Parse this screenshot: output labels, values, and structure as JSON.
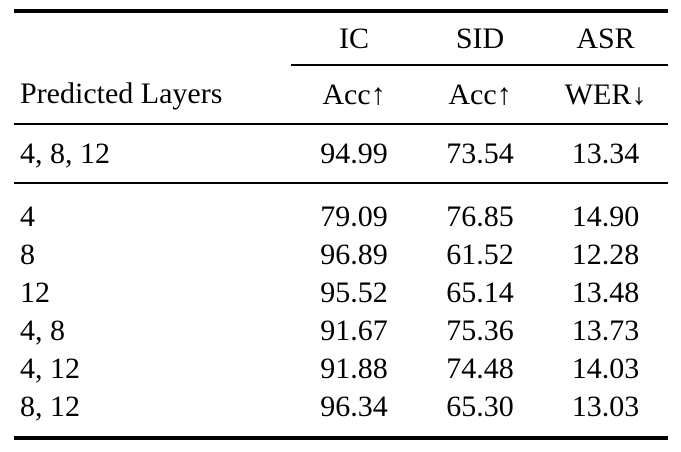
{
  "table": {
    "column_groups": [
      "IC",
      "SID",
      "ASR"
    ],
    "header": {
      "row_label": "Predicted Layers",
      "metrics": [
        {
          "label": "Acc",
          "arrow": "↑"
        },
        {
          "label": "Acc",
          "arrow": "↑"
        },
        {
          "label": "WER",
          "arrow": "↓"
        }
      ]
    },
    "baseline_row": {
      "layers": "4, 8, 12",
      "values": [
        "94.99",
        "73.54",
        "13.34"
      ]
    },
    "ablation_rows": [
      {
        "layers": "4",
        "values": [
          "79.09",
          "76.85",
          "14.90"
        ]
      },
      {
        "layers": "8",
        "values": [
          "96.89",
          "61.52",
          "12.28"
        ]
      },
      {
        "layers": "12",
        "values": [
          "95.52",
          "65.14",
          "13.48"
        ]
      },
      {
        "layers": "4, 8",
        "values": [
          "91.67",
          "75.36",
          "13.73"
        ]
      },
      {
        "layers": "4, 12",
        "values": [
          "91.88",
          "74.48",
          "14.03"
        ]
      },
      {
        "layers": "8, 12",
        "values": [
          "96.34",
          "65.30",
          "13.03"
        ]
      }
    ],
    "colors": {
      "text": "#000000",
      "rule": "#000000",
      "background": "#ffffff"
    }
  }
}
